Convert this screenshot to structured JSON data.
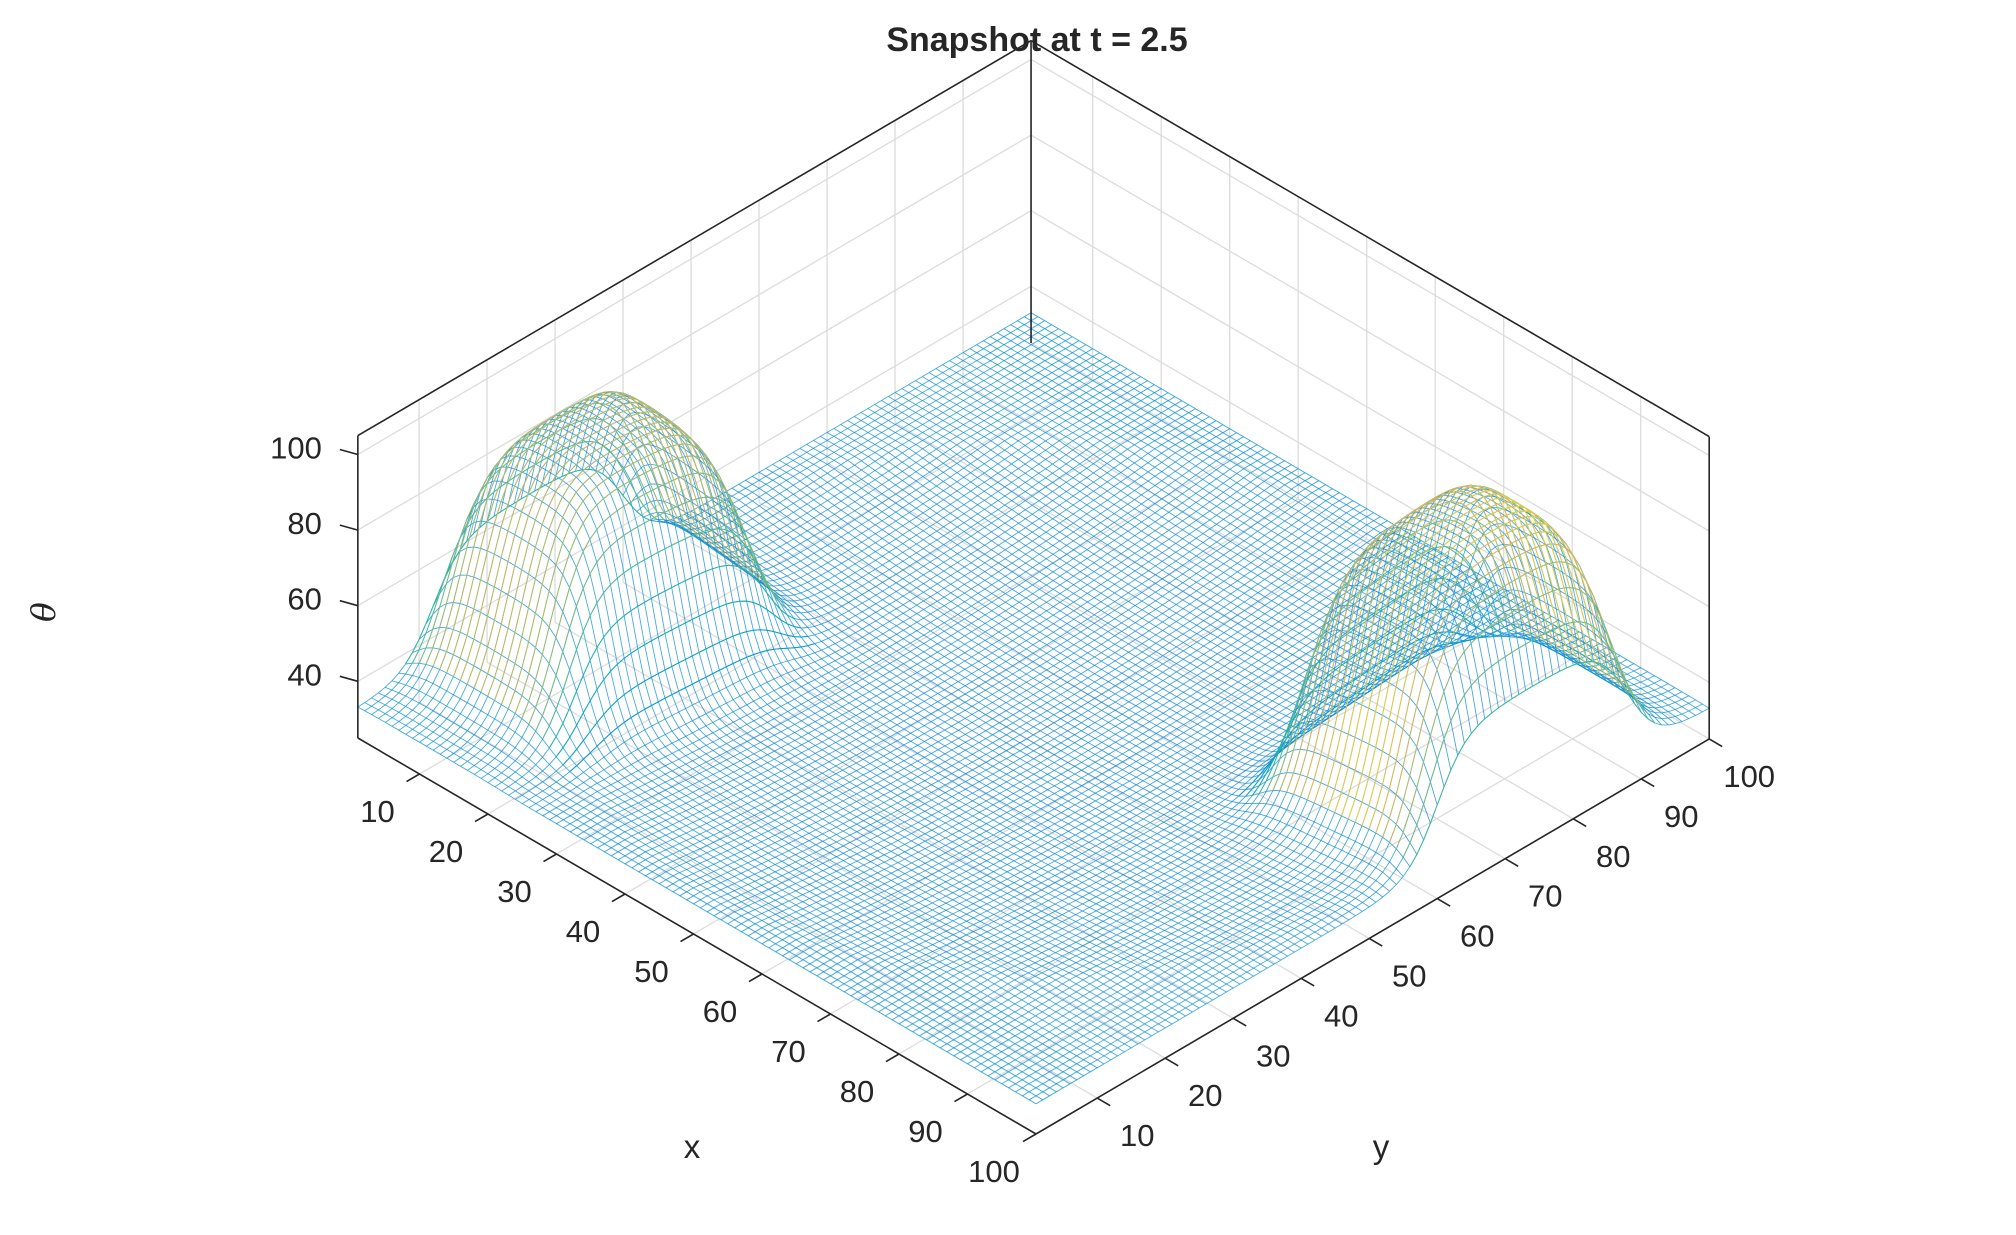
{
  "chart_data": {
    "type": "surface-mesh",
    "title": "Snapshot at t = 2.5",
    "xlabel": "x",
    "ylabel": "y",
    "zlabel": "θ",
    "xlim": [
      1,
      100
    ],
    "ylim": [
      1,
      100
    ],
    "zlim": [
      25,
      105
    ],
    "x_ticks": [
      10,
      20,
      30,
      40,
      50,
      60,
      70,
      80,
      90,
      100
    ],
    "y_ticks": [
      10,
      20,
      30,
      40,
      50,
      60,
      70,
      80,
      90,
      100
    ],
    "z_ticks": [
      40,
      60,
      80,
      100
    ],
    "x_tick_labels": [
      "10",
      "20",
      "30",
      "40",
      "50",
      "60",
      "70",
      "80",
      "90",
      "100"
    ],
    "y_tick_labels": [
      "10",
      "20",
      "30",
      "40",
      "50",
      "60",
      "70",
      "80",
      "90",
      "100"
    ],
    "z_tick_labels": [
      "40",
      "60",
      "80",
      "100"
    ],
    "grid": true,
    "colormap": "parula",
    "surface": {
      "base_level": 33,
      "minimum_level": 27,
      "peaks": [
        {
          "x_range": [
            1,
            22
          ],
          "y_range": [
            12,
            40
          ],
          "max": 93
        },
        {
          "x_range": [
            78,
            100
          ],
          "y_range": [
            60,
            88
          ],
          "max": 100
        }
      ]
    }
  }
}
